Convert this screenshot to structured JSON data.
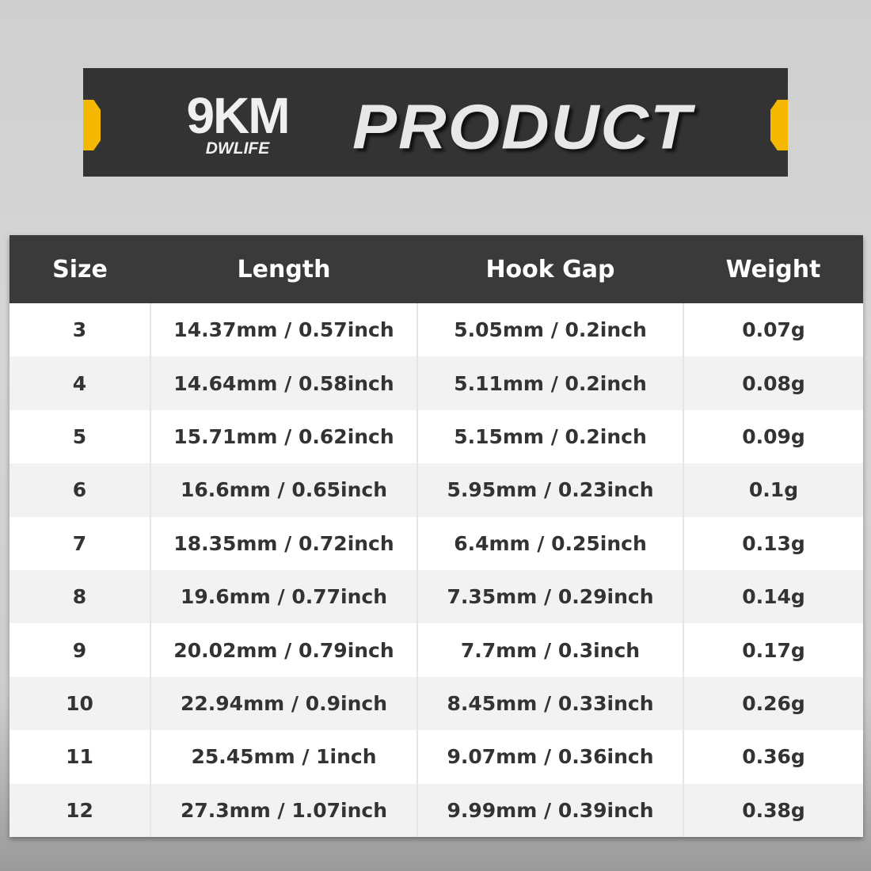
{
  "banner": {
    "logo_text": "9KM",
    "logo_subtext": "DWLIFE",
    "title": "PRODUCT",
    "accent_color": "#f5b800"
  },
  "table": {
    "headers": [
      "Size",
      "Length",
      "Hook Gap",
      "Weight"
    ],
    "rows": [
      [
        "3",
        "14.37mm / 0.57inch",
        "5.05mm / 0.2inch",
        "0.07g"
      ],
      [
        "4",
        "14.64mm / 0.58inch",
        "5.11mm / 0.2inch",
        "0.08g"
      ],
      [
        "5",
        "15.71mm / 0.62inch",
        "5.15mm / 0.2inch",
        "0.09g"
      ],
      [
        "6",
        "16.6mm / 0.65inch",
        "5.95mm / 0.23inch",
        "0.1g"
      ],
      [
        "7",
        "18.35mm / 0.72inch",
        "6.4mm / 0.25inch",
        "0.13g"
      ],
      [
        "8",
        "19.6mm / 0.77inch",
        "7.35mm / 0.29inch",
        "0.14g"
      ],
      [
        "9",
        "20.02mm / 0.79inch",
        "7.7mm / 0.3inch",
        "0.17g"
      ],
      [
        "10",
        "22.94mm / 0.9inch",
        "8.45mm / 0.33inch",
        "0.26g"
      ],
      [
        "11",
        "25.45mm / 1inch",
        "9.07mm / 0.36inch",
        "0.36g"
      ],
      [
        "12",
        "27.3mm / 1.07inch",
        "9.99mm / 0.39inch",
        "0.38g"
      ]
    ]
  }
}
